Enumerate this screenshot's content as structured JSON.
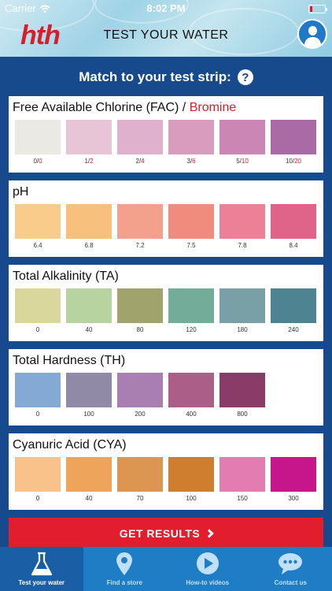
{
  "status_bar": {
    "carrier": "Carrier",
    "time": "8:02 PM"
  },
  "header": {
    "logo": "hth",
    "title": "TEST YOUR WATER"
  },
  "match": {
    "label": "Match to your test strip:",
    "help": "?"
  },
  "tests": [
    {
      "title": "Free Available Chlorine (FAC) / ",
      "title_accent": "Bromine",
      "swatches": [
        {
          "color": "#ebe9e4",
          "label": "0/",
          "label_red": "0"
        },
        {
          "color": "#e8c5d6",
          "label": "1/",
          "label_red": "2"
        },
        {
          "color": "#e0b1cc",
          "label": "2/",
          "label_red": "4"
        },
        {
          "color": "#d99cbf",
          "label": "3/",
          "label_red": "6"
        },
        {
          "color": "#cc86b5",
          "label": "5/",
          "label_red": "10"
        },
        {
          "color": "#a96aa6",
          "label": "10/",
          "label_red": "20"
        }
      ]
    },
    {
      "title": "pH",
      "title_accent": "",
      "swatches": [
        {
          "color": "#f9cc8c",
          "label": "6.4",
          "label_red": ""
        },
        {
          "color": "#f7c07d",
          "label": "6.8",
          "label_red": ""
        },
        {
          "color": "#f3a08c",
          "label": "7.2",
          "label_red": ""
        },
        {
          "color": "#ef8c7d",
          "label": "7.5",
          "label_red": ""
        },
        {
          "color": "#ec8096",
          "label": "7.8",
          "label_red": ""
        },
        {
          "color": "#e0638a",
          "label": "8.4",
          "label_red": ""
        }
      ]
    },
    {
      "title": "Total Alkalinity (TA)",
      "title_accent": "",
      "swatches": [
        {
          "color": "#d9d79c",
          "label": "0",
          "label_red": ""
        },
        {
          "color": "#b7d39f",
          "label": "40",
          "label_red": ""
        },
        {
          "color": "#a0a46c",
          "label": "80",
          "label_red": ""
        },
        {
          "color": "#73ad99",
          "label": "120",
          "label_red": ""
        },
        {
          "color": "#799fa7",
          "label": "180",
          "label_red": ""
        },
        {
          "color": "#4e8391",
          "label": "240",
          "label_red": ""
        }
      ]
    },
    {
      "title": "Total Hardness (TH)",
      "title_accent": "",
      "swatches": [
        {
          "color": "#84a9d4",
          "label": "0",
          "label_red": ""
        },
        {
          "color": "#908aa6",
          "label": "100",
          "label_red": ""
        },
        {
          "color": "#a97fb1",
          "label": "200",
          "label_red": ""
        },
        {
          "color": "#ab5f88",
          "label": "400",
          "label_red": ""
        },
        {
          "color": "#8a3b68",
          "label": "800",
          "label_red": ""
        }
      ]
    },
    {
      "title": "Cyanuric Acid (CYA)",
      "title_accent": "",
      "swatches": [
        {
          "color": "#f8c28a",
          "label": "0",
          "label_red": ""
        },
        {
          "color": "#eea45a",
          "label": "40",
          "label_red": ""
        },
        {
          "color": "#dd9652",
          "label": "70",
          "label_red": ""
        },
        {
          "color": "#cf7d2e",
          "label": "100",
          "label_red": ""
        },
        {
          "color": "#e27cb1",
          "label": "150",
          "label_red": ""
        },
        {
          "color": "#c7158b",
          "label": "300",
          "label_red": ""
        }
      ]
    }
  ],
  "results_button": {
    "label": "GET RESULTS"
  },
  "tabs": [
    {
      "label": "Test your water",
      "icon": "flask-icon",
      "active": true
    },
    {
      "label": "Find a store",
      "icon": "map-pin-icon",
      "active": false
    },
    {
      "label": "How-to videos",
      "icon": "play-icon",
      "active": false
    },
    {
      "label": "Contact us",
      "icon": "chat-bubble-icon",
      "active": false
    }
  ]
}
